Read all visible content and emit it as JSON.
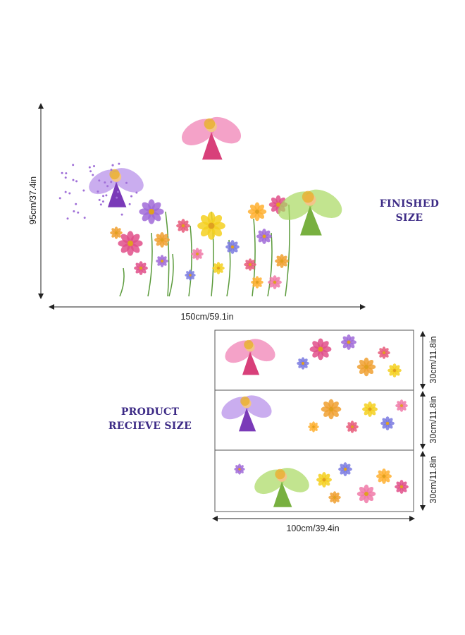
{
  "finished": {
    "title_line1": "FINISHED",
    "title_line2": "SIZE",
    "height_label": "95cm/37.4in",
    "width_label": "150cm/59.1in"
  },
  "received": {
    "title_line1": "PRODUCT",
    "title_line2": "RECIEVE SIZE",
    "panel_heights": [
      "30cm/11.8in",
      "30cm/11.8in",
      "30cm/11.8in"
    ],
    "width_label": "100cm/39.4in"
  },
  "colors": {
    "title": "#3d2b86",
    "arrow": "#222222"
  }
}
